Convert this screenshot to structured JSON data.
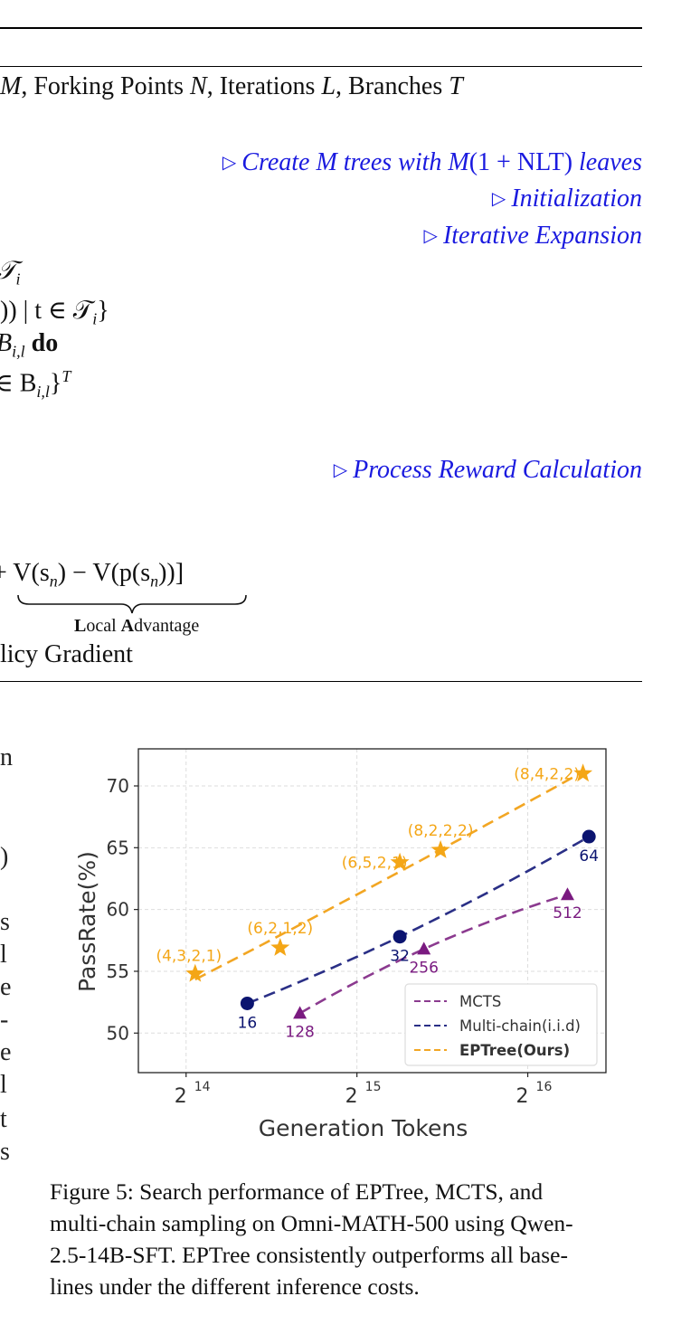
{
  "algorithm": {
    "header_line": "M, Forking Points N, Iterations L, Branches T",
    "header_parts": [
      "M",
      ", Forking Points ",
      "N",
      ", Iterations ",
      "L",
      ", Branches ",
      "T"
    ],
    "comments": {
      "create_trees_prefix": "Create M trees with M",
      "create_trees_formula": "(1 + NLT)",
      "create_trees_suffix": " leaves",
      "initialization": "Initialization",
      "iterative_expansion": "Iterative Expansion",
      "process_reward": "Process Reward Calculation"
    },
    "lines": {
      "line1": "𝒯",
      "line1_sub": "i",
      "line2": ")) | t ∈ 𝒯",
      "line2_sub": "i",
      "line2_end": "}",
      "line3_prefix": "B",
      "line3_sub": "i,l",
      "line3_keyword": "do",
      "line4_prefix": "∈ B",
      "line4_sub": "i,l",
      "line4_end": "}",
      "line4_sup": "T",
      "line5": "+ V(s",
      "line5_b": ") − V(p(s",
      "line5_c": "))]",
      "line5_sub": "n",
      "local_advantage_L": "L",
      "local_advantage_rest1": "ocal ",
      "local_advantage_A": "A",
      "local_advantage_rest2": "dvantage",
      "policy_gradient": "licy Gradient"
    }
  },
  "left_column_fragments": [
    "n",
    ")",
    "s",
    "l",
    "e",
    "-",
    "e",
    "l",
    "t",
    "s"
  ],
  "chart_data": {
    "type": "line",
    "xlabel": "Generation Tokens",
    "ylabel": "PassRate(%)",
    "x_scale": "log2",
    "x_ticks": [
      {
        "base": "2",
        "exp": "14",
        "value": 16384
      },
      {
        "base": "2",
        "exp": "15",
        "value": 32768
      },
      {
        "base": "2",
        "exp": "16",
        "value": 65536
      }
    ],
    "y_ticks": [
      50,
      55,
      60,
      65,
      70
    ],
    "xlim": [
      13500,
      90000
    ],
    "ylim": [
      46.8,
      73.0
    ],
    "grid": true,
    "legend_position": "bottom-right",
    "series": [
      {
        "name": "MCTS",
        "color": "#8b3a8f",
        "marker": "triangle",
        "points": [
          {
            "x": 26000,
            "y": 51.6,
            "label": "128"
          },
          {
            "x": 43000,
            "y": 56.8,
            "label": "256"
          },
          {
            "x": 77000,
            "y": 61.2,
            "label": "512"
          }
        ]
      },
      {
        "name": "Multi-chain(i.i.d)",
        "color": "#2a2f86",
        "marker": "circle",
        "points": [
          {
            "x": 21000,
            "y": 52.4,
            "label": "16"
          },
          {
            "x": 39000,
            "y": 57.8,
            "label": "32"
          },
          {
            "x": 84000,
            "y": 65.9,
            "label": "64"
          }
        ]
      },
      {
        "name": "EPTree(Ours)",
        "color": "#f2a623",
        "marker": "star",
        "bold": true,
        "points": [
          {
            "x": 17000,
            "y": 54.8,
            "label": "(4,3,2,1)"
          },
          {
            "x": 24000,
            "y": 56.9,
            "label": "(6,2,1,2)"
          },
          {
            "x": 39000,
            "y": 63.8,
            "label": "(6,5,2,1)"
          },
          {
            "x": 46000,
            "y": 64.8,
            "label": "(8,2,2,2)"
          },
          {
            "x": 82000,
            "y": 71.0,
            "label": "(8,4,2,2)"
          }
        ]
      }
    ],
    "marker_colors": {
      "MCTS": "#7a1a80",
      "Multi-chain(i.i.d)": "#0b1470",
      "EPTree(Ours)": "#f4a616"
    }
  },
  "caption": {
    "lines": [
      "Figure 5: Search performance of EPTree, MCTS, and",
      "multi-chain sampling on Omni-MATH-500 using Qwen-",
      "2.5-14B-SFT. EPTree consistently outperforms all base-",
      "lines under the different inference costs."
    ]
  }
}
